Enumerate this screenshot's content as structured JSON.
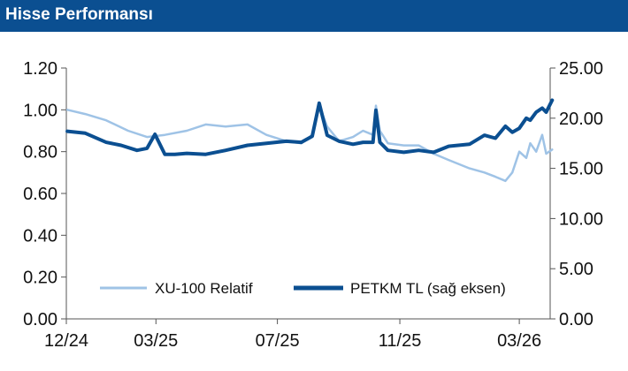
{
  "header": {
    "title": "Hisse Performansı"
  },
  "colors": {
    "header_bg": "#0b4f91",
    "xu100": "#9fc3e6",
    "petkm": "#0b4f91"
  },
  "chart_data": {
    "type": "line",
    "title": "Hisse Performansı",
    "xlabel": "",
    "ylabel": "",
    "x_ticks": [
      "12/24",
      "03/25",
      "07/25",
      "11/25",
      "03/26"
    ],
    "x_range": [
      "2024-12",
      "2026-04"
    ],
    "y_left_ticks": [
      "0.00",
      "0.20",
      "0.40",
      "0.60",
      "0.80",
      "1.00",
      "1.20"
    ],
    "y_left_range": [
      0,
      1.2
    ],
    "y_right_ticks": [
      "0.00",
      "5.00",
      "10.00",
      "15.00",
      "20.00",
      "25.00"
    ],
    "y_right_range": [
      0,
      25
    ],
    "grid": false,
    "legend_position": "bottom-center",
    "series": [
      {
        "name": "XU-100 Relatif",
        "axis": "left",
        "color": "#9fc3e6",
        "x": [
          "2024-12-02",
          "2024-12-20",
          "2025-01-10",
          "2025-02-01",
          "2025-02-20",
          "2025-03-10",
          "2025-04-01",
          "2025-04-20",
          "2025-05-10",
          "2025-06-01",
          "2025-06-20",
          "2025-07-10",
          "2025-07-25",
          "2025-08-05",
          "2025-08-12",
          "2025-08-20",
          "2025-09-01",
          "2025-09-15",
          "2025-09-25",
          "2025-10-05",
          "2025-10-08",
          "2025-10-12",
          "2025-10-20",
          "2025-11-05",
          "2025-11-20",
          "2025-12-05",
          "2025-12-20",
          "2026-01-10",
          "2026-01-25",
          "2026-02-05",
          "2026-02-15",
          "2026-02-22",
          "2026-03-01",
          "2026-03-08",
          "2026-03-12",
          "2026-03-18",
          "2026-03-24",
          "2026-03-28",
          "2026-04-03"
        ],
        "values": [
          1.0,
          0.98,
          0.95,
          0.9,
          0.87,
          0.88,
          0.9,
          0.93,
          0.92,
          0.93,
          0.88,
          0.85,
          0.84,
          0.88,
          1.02,
          0.92,
          0.85,
          0.87,
          0.9,
          0.88,
          1.02,
          0.9,
          0.84,
          0.83,
          0.83,
          0.79,
          0.76,
          0.72,
          0.7,
          0.68,
          0.66,
          0.7,
          0.8,
          0.77,
          0.84,
          0.8,
          0.88,
          0.79,
          0.81
        ]
      },
      {
        "name": "PETKM TL (sağ eksen)",
        "axis": "right",
        "color": "#0b4f91",
        "x": [
          "2024-12-02",
          "2024-12-20",
          "2025-01-10",
          "2025-01-25",
          "2025-02-10",
          "2025-02-20",
          "2025-02-28",
          "2025-03-10",
          "2025-03-20",
          "2025-04-01",
          "2025-04-20",
          "2025-05-10",
          "2025-06-01",
          "2025-06-20",
          "2025-07-10",
          "2025-07-25",
          "2025-08-05",
          "2025-08-12",
          "2025-08-20",
          "2025-09-01",
          "2025-09-15",
          "2025-09-25",
          "2025-10-05",
          "2025-10-08",
          "2025-10-12",
          "2025-10-20",
          "2025-11-05",
          "2025-11-20",
          "2025-12-05",
          "2025-12-20",
          "2026-01-10",
          "2026-01-25",
          "2026-02-05",
          "2026-02-15",
          "2026-02-22",
          "2026-03-01",
          "2026-03-08",
          "2026-03-12",
          "2026-03-18",
          "2026-03-24",
          "2026-03-28",
          "2026-04-03"
        ],
        "values": [
          18.7,
          18.5,
          17.6,
          17.3,
          16.8,
          17.0,
          18.4,
          16.4,
          16.4,
          16.5,
          16.4,
          16.8,
          17.3,
          17.5,
          17.7,
          17.6,
          18.2,
          21.5,
          18.3,
          17.7,
          17.4,
          17.6,
          17.6,
          20.8,
          17.6,
          16.8,
          16.6,
          16.8,
          16.6,
          17.2,
          17.4,
          18.3,
          18.0,
          19.2,
          18.6,
          19.0,
          20.0,
          19.8,
          20.6,
          21.0,
          20.6,
          21.8
        ]
      }
    ]
  }
}
